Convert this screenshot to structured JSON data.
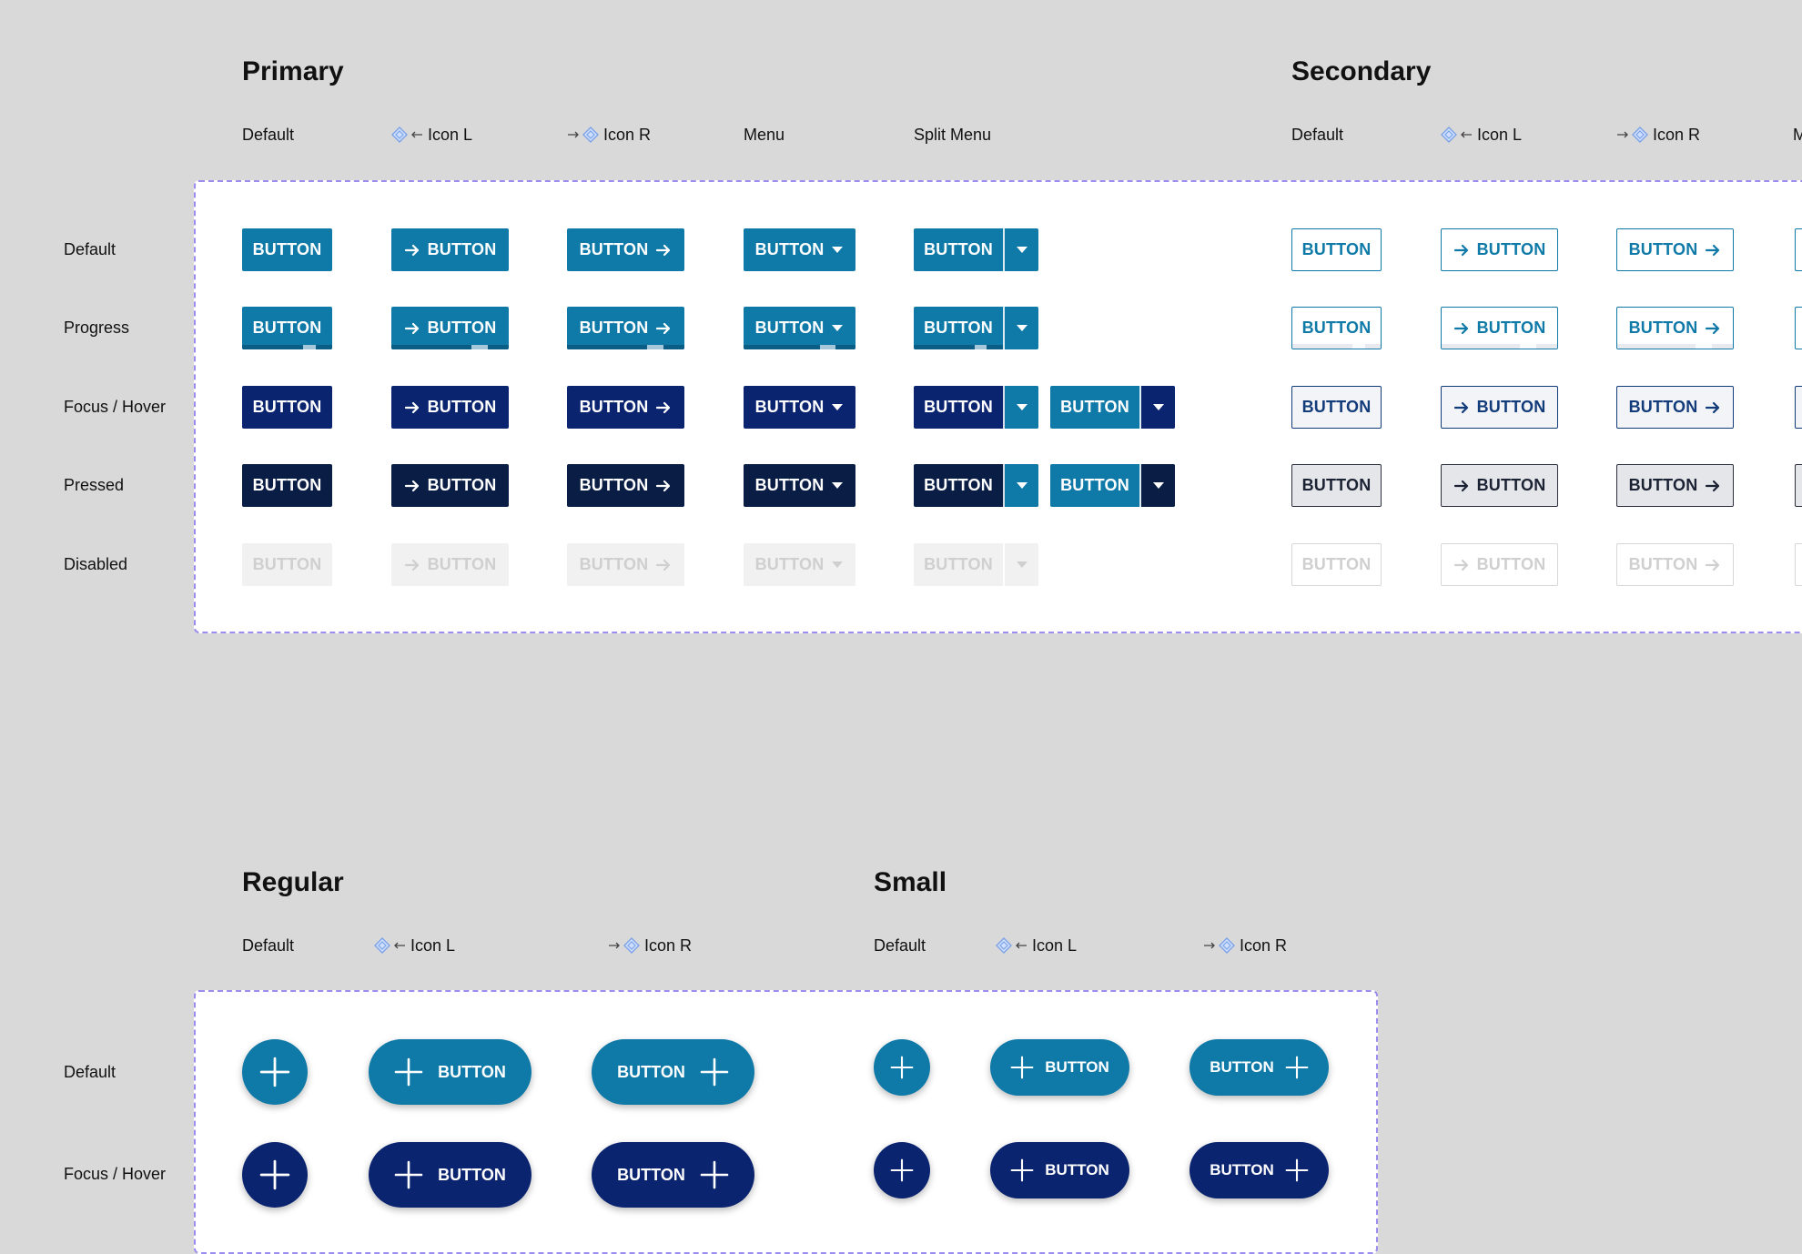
{
  "primary": {
    "title": "Primary",
    "columns": [
      "Default",
      "Icon L",
      "Icon R",
      "Menu",
      "Split Menu"
    ]
  },
  "secondary": {
    "title": "Secondary",
    "columns": [
      "Default",
      "Icon L",
      "Icon R",
      "M"
    ]
  },
  "rows": [
    "Default",
    "Progress",
    "Focus / Hover",
    "Pressed",
    "Disabled"
  ],
  "button_label": "BUTTON",
  "fab": {
    "regular": {
      "title": "Regular",
      "columns": [
        "Default",
        "Icon L",
        "Icon R"
      ]
    },
    "small": {
      "title": "Small",
      "columns": [
        "Default",
        "Icon L",
        "Icon R"
      ]
    },
    "rows": [
      "Default",
      "Focus / Hover"
    ]
  },
  "colors": {
    "background": "#d9d9d9",
    "primary_default": "#0f7aa8",
    "primary_focus": "#0b2470",
    "primary_pressed": "#0a1d45",
    "disabled_bg": "#f1f1f1",
    "frame_border": "#9b8cf0"
  },
  "icons": {
    "component": "diamond-component-icon",
    "arrow_left": "left-arrow-icon",
    "arrow_right": "right-arrow-icon",
    "caret": "caret-down-icon",
    "plus": "plus-icon"
  }
}
